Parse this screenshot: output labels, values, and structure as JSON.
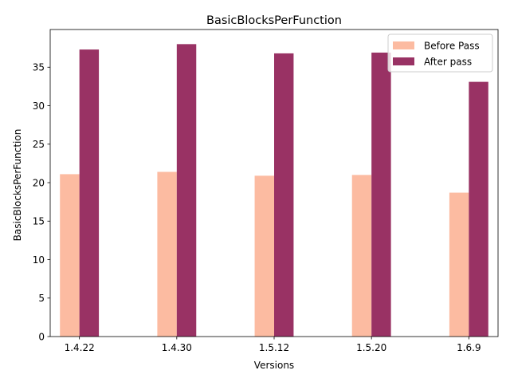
{
  "chart_data": {
    "type": "bar",
    "title": "BasicBlocksPerFunction",
    "xlabel": "Versions",
    "ylabel": "BasicBlocksPerFunction",
    "categories": [
      "1.4.22",
      "1.4.30",
      "1.5.12",
      "1.5.20",
      "1.6.9"
    ],
    "series": [
      {
        "name": "Before Pass",
        "color": "#fcbba1",
        "values": [
          21.1,
          21.4,
          20.9,
          21.0,
          18.7
        ]
      },
      {
        "name": "After pass",
        "color": "#993264",
        "values": [
          37.3,
          38.0,
          36.8,
          36.9,
          33.1
        ]
      }
    ],
    "ylim": [
      0,
      39.9
    ],
    "yticks": [
      0,
      5,
      10,
      15,
      20,
      25,
      30,
      35
    ],
    "grid": false,
    "legend_position": "top-right"
  }
}
